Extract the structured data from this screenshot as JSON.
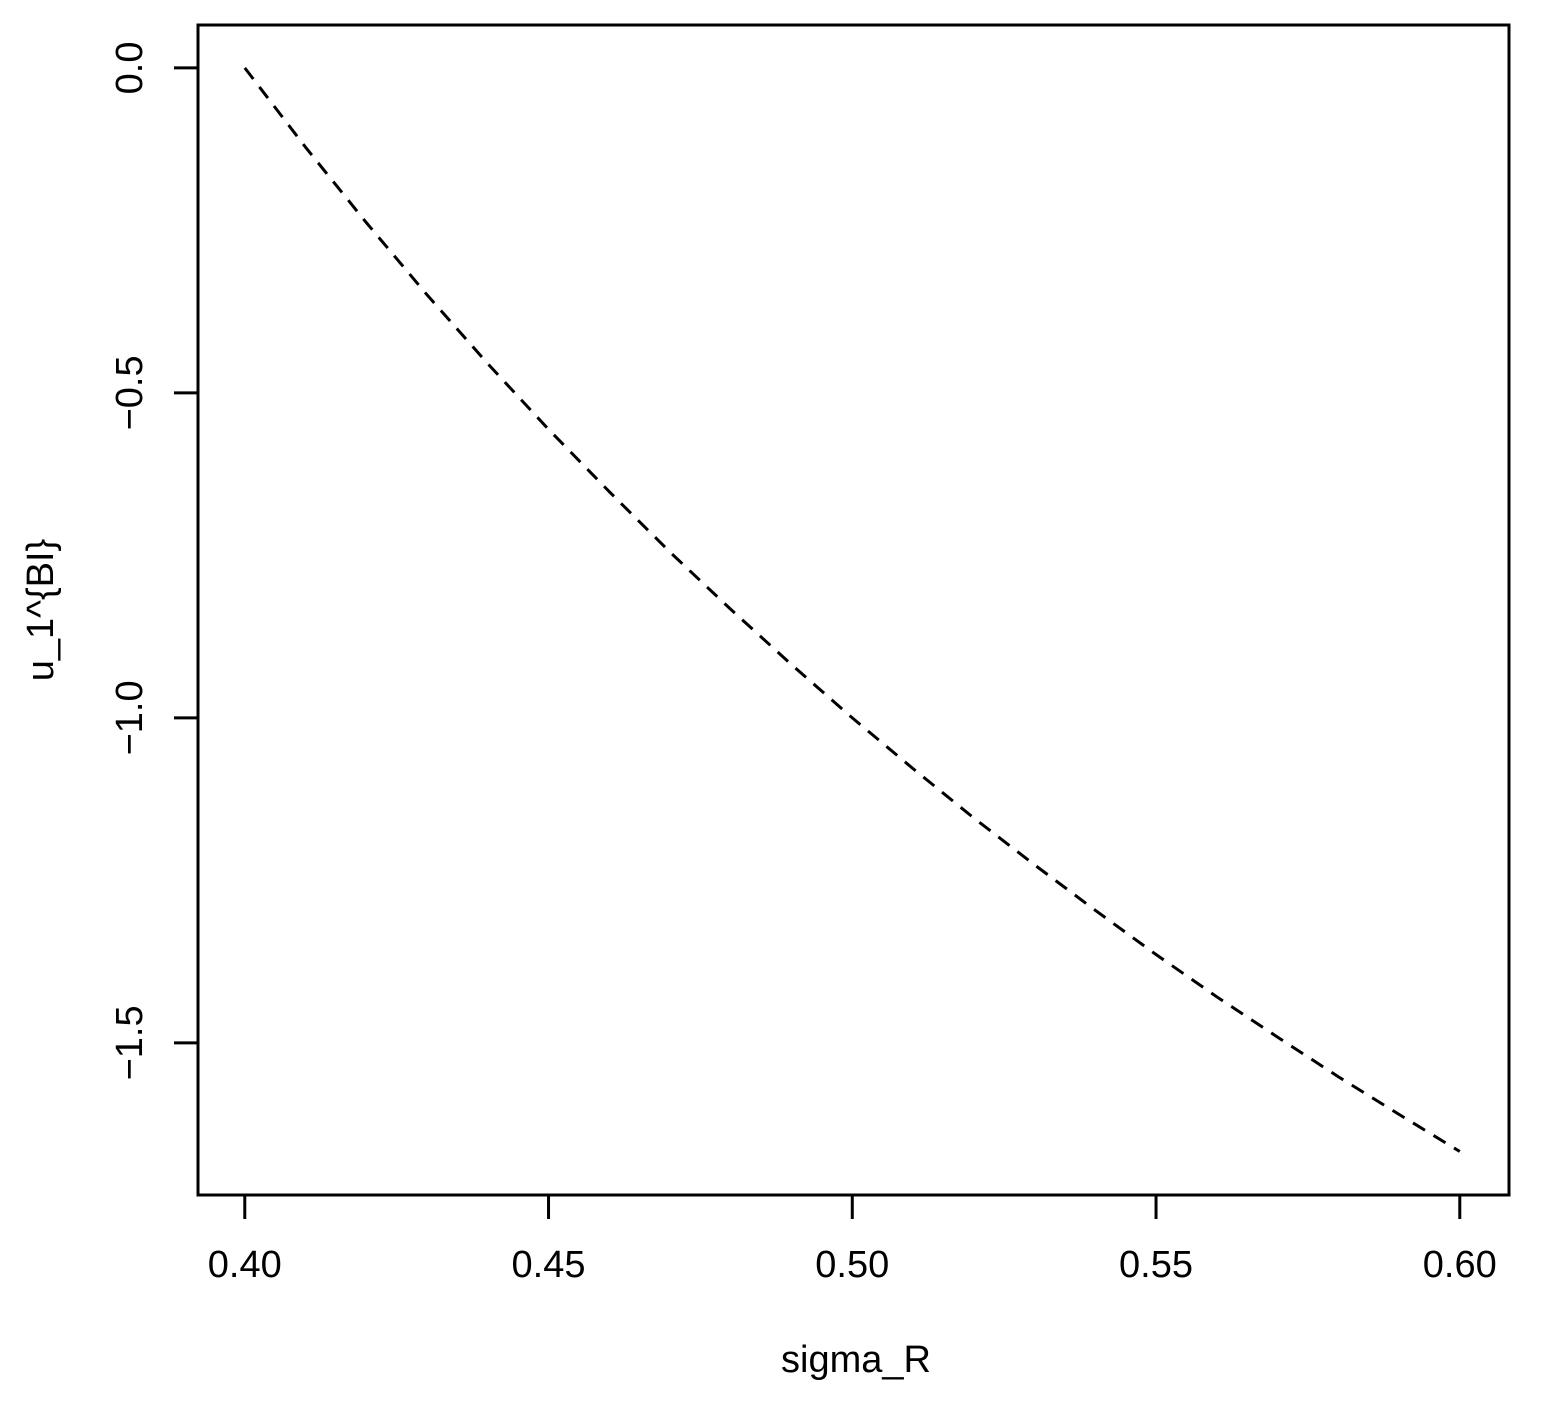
{
  "figure": {
    "background": "#ffffff",
    "foreground": "#000000"
  },
  "chart_data": {
    "type": "line",
    "title": "",
    "xlabel": "sigma_R",
    "ylabel": "u_1^{BI}",
    "grid": false,
    "legend_position": "none",
    "line_style": "dashed",
    "line_color": "#000000",
    "xlim": [
      0.3923,
      0.6081
    ],
    "ylim": [
      -1.734,
      0.066
    ],
    "x_ticks": [
      0.4,
      0.45,
      0.5,
      0.55,
      0.6
    ],
    "x_tick_labels": [
      "0.40",
      "0.45",
      "0.50",
      "0.55",
      "0.60"
    ],
    "y_ticks": [
      0.0,
      -0.5,
      -1.0,
      -1.5
    ],
    "y_tick_labels": [
      "0.0",
      "−0.5",
      "−1.0",
      "−1.5"
    ],
    "series": [
      {
        "name": "u_1^{BI}",
        "x": [
          0.4,
          0.41,
          0.42,
          0.43,
          0.44,
          0.45,
          0.46,
          0.47,
          0.48,
          0.49,
          0.5,
          0.51,
          0.52,
          0.53,
          0.54,
          0.55,
          0.56,
          0.57,
          0.58,
          0.59,
          0.6
        ],
        "y": [
          0.0,
          -0.122,
          -0.238,
          -0.349,
          -0.455,
          -0.556,
          -0.652,
          -0.745,
          -0.833,
          -0.918,
          -1.0,
          -1.078,
          -1.154,
          -1.226,
          -1.296,
          -1.364,
          -1.429,
          -1.491,
          -1.552,
          -1.61,
          -1.667
        ]
      }
    ]
  }
}
